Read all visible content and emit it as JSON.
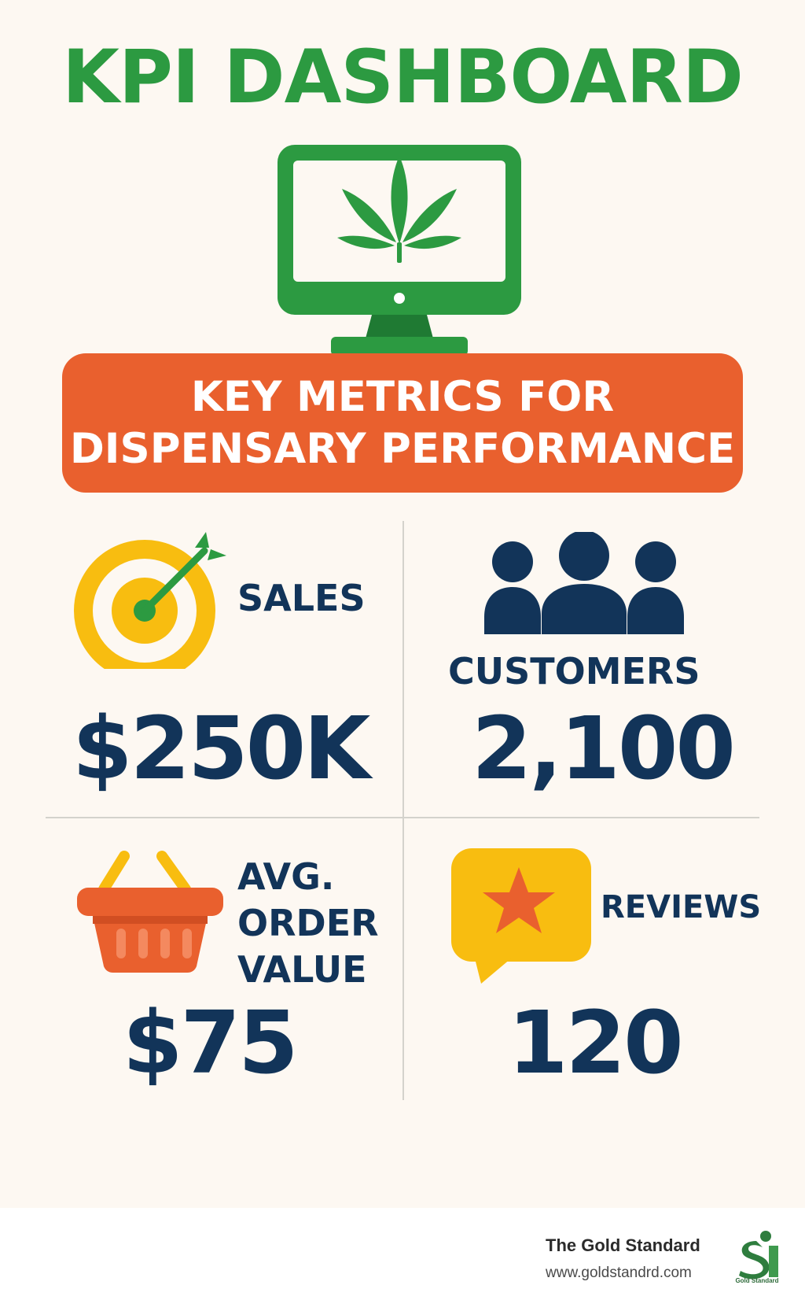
{
  "header": {
    "title": "KPI DASHBOARD"
  },
  "banner": {
    "line1": "KEY METRICS FOR",
    "line2": "DISPENSARY PERFORMANCE"
  },
  "metrics": {
    "sales": {
      "label": "SALES",
      "value": "$250K"
    },
    "customers": {
      "label": "CUSTOMERS",
      "value": "2,100"
    },
    "aov": {
      "label_line1": "AVG.",
      "label_line2": "ORDER",
      "label_line3": "VALUE",
      "value": "$75"
    },
    "reviews": {
      "label": "REVIEWS",
      "value": "120"
    }
  },
  "footer": {
    "brand": "The Gold Standard",
    "url": "www.goldstandrd.com",
    "logo_text": "Gold Standard"
  },
  "colors": {
    "green": "#2c9a41",
    "orange": "#e9602e",
    "navy": "#123459",
    "yellow": "#f8bd10"
  },
  "icons": [
    "monitor-cannabis-icon",
    "target-arrow-icon",
    "users-group-icon",
    "shopping-basket-icon",
    "star-chat-icon",
    "brand-logo-icon"
  ]
}
